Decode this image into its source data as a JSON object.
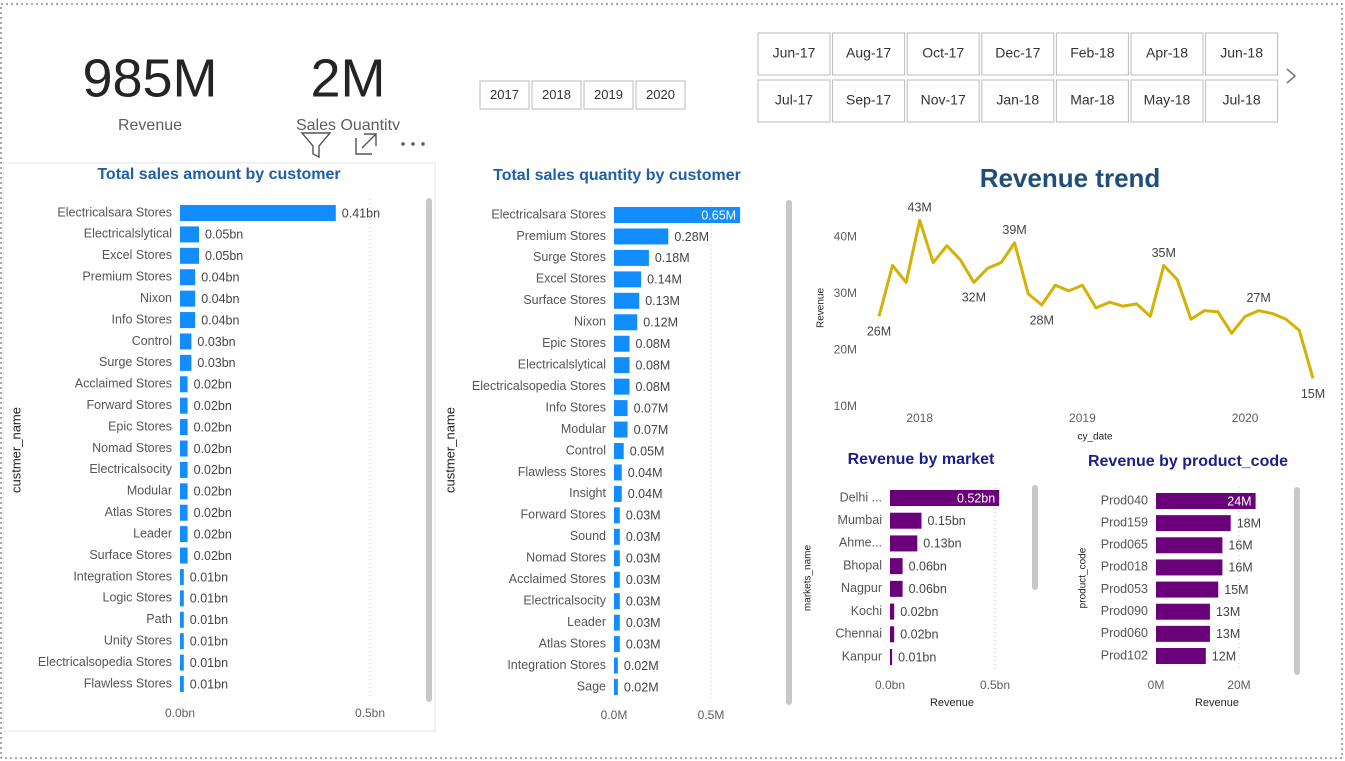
{
  "kpis": [
    {
      "value": "985M",
      "label": "Revenue"
    },
    {
      "value": "2M",
      "label": "Sales Quantity"
    }
  ],
  "year_slicer": [
    "2017",
    "2018",
    "2019",
    "2020"
  ],
  "month_slicer": [
    "Jun-17",
    "Aug-17",
    "Oct-17",
    "Dec-17",
    "Feb-18",
    "Apr-18",
    "Jun-18",
    "Jul-17",
    "Sep-17",
    "Nov-17",
    "Jan-18",
    "Mar-18",
    "May-18",
    "Jul-18"
  ],
  "chart_data": [
    {
      "type": "hbar",
      "title": "Total sales amount by customer",
      "y_label": "custmer_name",
      "color": "#118dff",
      "categories": [
        "Electricalsara Stores",
        "Electricalslytical",
        "Excel Stores",
        "Premium Stores",
        "Nixon",
        "Info Stores",
        "Control",
        "Surge Stores",
        "Acclaimed Stores",
        "Forward Stores",
        "Epic Stores",
        "Nomad Stores",
        "Electricalsocity",
        "Modular",
        "Atlas Stores",
        "Leader",
        "Surface Stores",
        "Integration Stores",
        "Logic Stores",
        "Path",
        "Unity Stores",
        "Electricalsopedia Stores",
        "Flawless Stores"
      ],
      "values": [
        0.41,
        0.05,
        0.05,
        0.04,
        0.04,
        0.04,
        0.03,
        0.03,
        0.02,
        0.02,
        0.02,
        0.02,
        0.02,
        0.02,
        0.02,
        0.02,
        0.02,
        0.01,
        0.01,
        0.01,
        0.01,
        0.01,
        0.01
      ],
      "value_labels": [
        "0.41bn",
        "0.05bn",
        "0.05bn",
        "0.04bn",
        "0.04bn",
        "0.04bn",
        "0.03bn",
        "0.03bn",
        "0.02bn",
        "0.02bn",
        "0.02bn",
        "0.02bn",
        "0.02bn",
        "0.02bn",
        "0.02bn",
        "0.02bn",
        "0.02bn",
        "0.01bn",
        "0.01bn",
        "0.01bn",
        "0.01bn",
        "0.01bn",
        "0.01bn"
      ],
      "xlim": [
        0,
        0.6
      ],
      "xticks": [
        {
          "value": 0,
          "label": "0.0bn"
        },
        {
          "value": 0.5,
          "label": "0.5bn"
        }
      ]
    },
    {
      "type": "hbar",
      "title": "Total sales quantity by customer",
      "y_label": "custmer_name",
      "color": "#118dff",
      "categories": [
        "Electricalsara Stores",
        "Premium Stores",
        "Surge Stores",
        "Excel Stores",
        "Surface Stores",
        "Nixon",
        "Epic Stores",
        "Electricalslytical",
        "Electricalsopedia Stores",
        "Info Stores",
        "Modular",
        "Control",
        "Flawless Stores",
        "Insight",
        "Forward Stores",
        "Sound",
        "Nomad Stores",
        "Acclaimed Stores",
        "Electricalsocity",
        "Leader",
        "Atlas Stores",
        "Integration Stores",
        "Sage"
      ],
      "values": [
        0.65,
        0.28,
        0.18,
        0.14,
        0.13,
        0.12,
        0.08,
        0.08,
        0.08,
        0.07,
        0.07,
        0.05,
        0.04,
        0.04,
        0.03,
        0.03,
        0.03,
        0.03,
        0.03,
        0.03,
        0.03,
        0.02,
        0.02
      ],
      "value_labels": [
        "0.65M",
        "0.28M",
        "0.18M",
        "0.14M",
        "0.13M",
        "0.12M",
        "0.08M",
        "0.08M",
        "0.08M",
        "0.07M",
        "0.07M",
        "0.05M",
        "0.04M",
        "0.04M",
        "0.03M",
        "0.03M",
        "0.03M",
        "0.03M",
        "0.03M",
        "0.03M",
        "0.03M",
        "0.02M",
        "0.02M"
      ],
      "xlim": [
        0,
        0.66
      ],
      "xticks": [
        {
          "value": 0,
          "label": "0.0M"
        },
        {
          "value": 0.5,
          "label": "0.5M"
        }
      ]
    },
    {
      "type": "hbar",
      "title": "Revenue by market",
      "y_label": "markets_name",
      "x_label": "Revenue",
      "color": "#6b007b",
      "categories": [
        "Delhi ...",
        "Mumbai",
        "Ahme...",
        "Bhopal",
        "Nagpur",
        "Kochi",
        "Chennai",
        "Kanpur"
      ],
      "values": [
        0.52,
        0.15,
        0.13,
        0.06,
        0.06,
        0.02,
        0.02,
        0.01
      ],
      "value_labels": [
        "0.52bn",
        "0.15bn",
        "0.13bn",
        "0.06bn",
        "0.06bn",
        "0.02bn",
        "0.02bn",
        "0.01bn"
      ],
      "xlim": [
        0,
        0.55
      ],
      "xticks": [
        {
          "value": 0,
          "label": "0.0bn"
        },
        {
          "value": 0.5,
          "label": "0.5bn"
        }
      ]
    },
    {
      "type": "hbar",
      "title": "Revenue by product_code",
      "y_label": "product_code",
      "x_label": "Revenue",
      "color": "#6b007b",
      "categories": [
        "Prod040",
        "Prod159",
        "Prod065",
        "Prod018",
        "Prod053",
        "Prod090",
        "Prod060",
        "Prod102"
      ],
      "values": [
        24,
        18,
        16,
        16,
        15,
        13,
        13,
        12
      ],
      "value_labels": [
        "24M",
        "18M",
        "16M",
        "16M",
        "15M",
        "13M",
        "13M",
        "12M"
      ],
      "xlim": [
        0,
        25
      ],
      "xticks": [
        {
          "value": 0,
          "label": "0M"
        },
        {
          "value": 20,
          "label": "20M"
        }
      ]
    },
    {
      "type": "line",
      "title": "Revenue trend",
      "x_label": "cy_date",
      "y_label": "Revenue",
      "color": "#d4b106",
      "x": [
        2017.75,
        2017.833,
        2017.917,
        2018,
        2018.083,
        2018.167,
        2018.25,
        2018.333,
        2018.417,
        2018.5,
        2018.583,
        2018.667,
        2018.75,
        2018.833,
        2018.917,
        2019,
        2019.083,
        2019.167,
        2019.25,
        2019.333,
        2019.417,
        2019.5,
        2019.583,
        2019.667,
        2019.75,
        2019.833,
        2019.917,
        2020,
        2020.083,
        2020.167,
        2020.25,
        2020.333,
        2020.417
      ],
      "values": [
        26,
        35,
        32,
        43,
        35.5,
        38.5,
        36,
        32,
        34.5,
        35.5,
        39,
        30,
        28,
        31.5,
        30.5,
        31.5,
        27.5,
        28.5,
        27.8,
        28.2,
        26,
        35,
        32.5,
        25.5,
        27,
        26.8,
        23,
        26,
        27,
        26.5,
        25.5,
        23.5,
        15
      ],
      "value_labels": [
        "26M",
        null,
        null,
        "43M",
        null,
        null,
        null,
        "32M",
        null,
        null,
        "39M",
        null,
        "28M",
        null,
        null,
        null,
        null,
        null,
        null,
        null,
        null,
        "35M",
        null,
        null,
        null,
        null,
        null,
        null,
        "27M",
        null,
        null,
        null,
        "15M"
      ],
      "xlim": [
        2017.75,
        2020.417
      ],
      "xticks": [
        2018,
        2019,
        2020
      ],
      "ylim": [
        8,
        45
      ],
      "yticks": [
        {
          "value": 10,
          "label": "10M"
        },
        {
          "value": 20,
          "label": "20M"
        },
        {
          "value": 30,
          "label": "30M"
        },
        {
          "value": 40,
          "label": "40M"
        }
      ]
    }
  ]
}
